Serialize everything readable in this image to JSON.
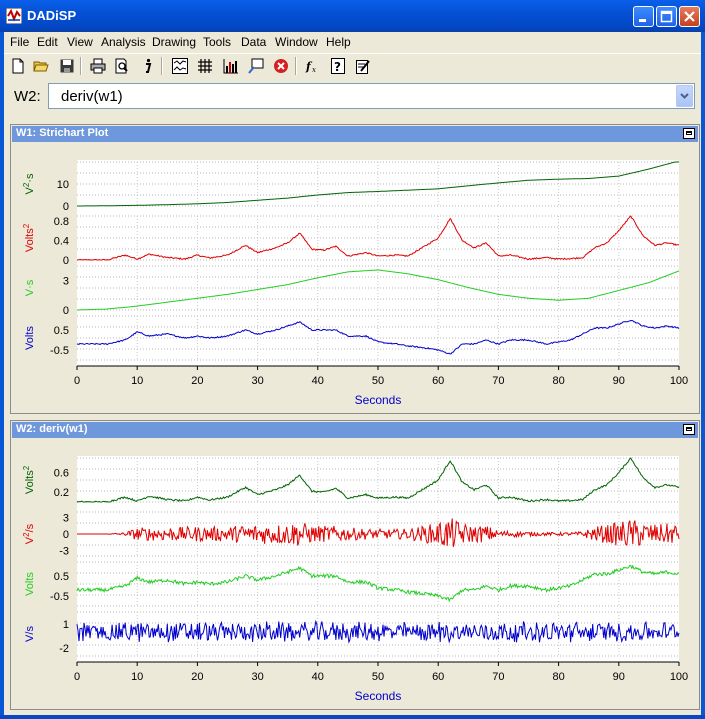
{
  "window": {
    "title": "DADiSP",
    "colors": {
      "title_bar": "#0451d6",
      "pane_title": "#6f97dc",
      "chrome": "#ece9d8"
    }
  },
  "menu": [
    "File",
    "Edit",
    "View",
    "Analysis",
    "Drawing",
    "Tools",
    "Data",
    "Window",
    "Help"
  ],
  "toolbar_icons": [
    "new-file-icon",
    "open-folder-icon",
    "save-icon",
    "print-icon",
    "print-preview-icon",
    "info-icon",
    "strip-plot-icon",
    "grid-icon",
    "bar-chart-icon",
    "annotate-icon",
    "stop-icon",
    "function-icon",
    "help-icon",
    "edit-notes-icon"
  ],
  "command": {
    "label": "W2:",
    "value": "deriv(w1)"
  },
  "panes": [
    {
      "title": "W1: Strichart Plot",
      "xlabel": "Seconds",
      "xticks": [
        "0",
        "10",
        "20",
        "30",
        "40",
        "50",
        "60",
        "70",
        "80",
        "90",
        "100"
      ],
      "strips": [
        {
          "label": "V²·s",
          "label_main": "V",
          "label_sup": "2",
          "label_rest": "·s",
          "color": "#006400",
          "ticks": [
            "10",
            "0"
          ]
        },
        {
          "label": "Volts²",
          "label_main": "Volts",
          "label_sup": "2",
          "label_rest": "",
          "color": "#e00000",
          "ticks": [
            "0.8",
            "0.4",
            "0"
          ]
        },
        {
          "label": "V·s",
          "label_main": "V·s",
          "label_sup": "",
          "label_rest": "",
          "color": "#22cc22",
          "ticks": [
            "3",
            "0"
          ]
        },
        {
          "label": "Volts",
          "label_main": "Volts",
          "label_sup": "",
          "label_rest": "",
          "color": "#0000cc",
          "ticks": [
            "0.5",
            "-0.5"
          ]
        }
      ]
    },
    {
      "title": "W2: deriv(w1)",
      "xlabel": "Seconds",
      "xticks": [
        "0",
        "10",
        "20",
        "30",
        "40",
        "50",
        "60",
        "70",
        "80",
        "90",
        "100"
      ],
      "strips": [
        {
          "label": "Volts²",
          "label_main": "Volts",
          "label_sup": "2",
          "label_rest": "",
          "color": "#006400",
          "ticks": [
            "0.6",
            "0.2"
          ]
        },
        {
          "label": "V²/s",
          "label_main": "V",
          "label_sup": "2",
          "label_rest": "/s",
          "color": "#e00000",
          "ticks": [
            "3",
            "0",
            "-3"
          ]
        },
        {
          "label": "Volts",
          "label_main": "Volts",
          "label_sup": "",
          "label_rest": "",
          "color": "#22cc22",
          "ticks": [
            "0.5",
            "-0.5"
          ]
        },
        {
          "label": "V/s",
          "label_main": "V/s",
          "label_sup": "",
          "label_rest": "",
          "color": "#0000cc",
          "ticks": [
            "1",
            "-2"
          ]
        }
      ]
    }
  ],
  "chart_data": [
    {
      "type": "line",
      "title": "W1: Strichart Plot",
      "xlabel": "Seconds",
      "xlim": [
        0,
        100
      ],
      "grid": true,
      "series": [
        {
          "name": "V²·s",
          "ylim": [
            0,
            20
          ],
          "x": [
            0,
            5,
            10,
            15,
            20,
            25,
            30,
            35,
            40,
            45,
            50,
            55,
            60,
            65,
            70,
            75,
            80,
            85,
            90,
            95,
            100
          ],
          "y": [
            0,
            0.1,
            0.3,
            0.6,
            1,
            1.6,
            2.6,
            3.6,
            5,
            6.1,
            6.6,
            7.2,
            7.8,
            9.2,
            10.5,
            11.7,
            12.2,
            12.5,
            13.6,
            16.8,
            20.5
          ]
        },
        {
          "name": "Volts²",
          "ylim": [
            0,
            0.9
          ],
          "x": [
            0,
            5,
            8,
            10,
            12,
            15,
            18,
            20,
            22,
            25,
            28,
            30,
            33,
            35,
            37,
            39,
            41,
            43,
            45,
            48,
            50,
            53,
            55,
            58,
            60,
            62,
            64,
            66,
            68,
            70,
            72,
            75,
            78,
            80,
            82,
            84,
            86,
            88,
            90,
            92,
            94,
            96,
            98,
            100
          ],
          "y": [
            0,
            0,
            0.1,
            0.02,
            0.12,
            0.05,
            0.02,
            0.1,
            0.04,
            0.1,
            0.3,
            0.15,
            0.25,
            0.35,
            0.55,
            0.22,
            0.2,
            0.28,
            0.08,
            0.15,
            0.08,
            0.1,
            0.08,
            0.3,
            0.45,
            0.85,
            0.4,
            0.25,
            0.35,
            0.08,
            0.1,
            0.02,
            0.05,
            0.02,
            0.03,
            0.05,
            0.25,
            0.35,
            0.6,
            0.9,
            0.5,
            0.3,
            0.35,
            0.3
          ]
        },
        {
          "name": "V·s",
          "ylim": [
            0,
            4.5
          ],
          "x": [
            0,
            5,
            10,
            15,
            20,
            25,
            30,
            35,
            40,
            45,
            50,
            55,
            60,
            65,
            70,
            75,
            80,
            85,
            90,
            95,
            100
          ],
          "y": [
            0,
            0.1,
            0.4,
            0.8,
            1.2,
            1.6,
            2.1,
            2.6,
            3.3,
            3.9,
            4.1,
            3.7,
            3.1,
            2.3,
            1.6,
            1.2,
            1.0,
            1.2,
            2.0,
            2.8,
            4.0
          ]
        },
        {
          "name": "Volts",
          "ylim": [
            -1,
            1.2
          ],
          "x": [
            0,
            5,
            8,
            10,
            12,
            15,
            18,
            20,
            22,
            25,
            28,
            30,
            33,
            35,
            37,
            39,
            41,
            43,
            45,
            48,
            50,
            53,
            55,
            58,
            60,
            62,
            64,
            66,
            68,
            70,
            72,
            75,
            78,
            80,
            82,
            84,
            86,
            88,
            90,
            92,
            94,
            96,
            98,
            100
          ],
          "y": [
            -0.2,
            -0.2,
            0,
            0.4,
            0.2,
            0.3,
            0.1,
            0.2,
            0.1,
            0.2,
            0.5,
            0.3,
            0.5,
            0.7,
            0.9,
            0.5,
            0.5,
            0.5,
            0.2,
            0.2,
            -0.1,
            -0.2,
            -0.3,
            -0.4,
            -0.5,
            -0.7,
            -0.2,
            -0.2,
            0,
            -0.2,
            0,
            0,
            -0.2,
            -0.1,
            0,
            0.3,
            0.6,
            0.6,
            0.8,
            1.0,
            0.7,
            0.6,
            0.7,
            0.6
          ]
        }
      ]
    },
    {
      "type": "line",
      "title": "W2: deriv(w1)",
      "xlabel": "Seconds",
      "xlim": [
        0,
        100
      ],
      "grid": true,
      "series": [
        {
          "name": "Volts²",
          "ylim": [
            0,
            0.9
          ],
          "x": [
            0,
            5,
            8,
            10,
            12,
            15,
            18,
            20,
            22,
            25,
            28,
            30,
            33,
            35,
            37,
            39,
            41,
            43,
            45,
            48,
            50,
            53,
            55,
            58,
            60,
            62,
            64,
            66,
            68,
            70,
            72,
            75,
            78,
            80,
            82,
            84,
            86,
            88,
            90,
            92,
            94,
            96,
            98,
            100
          ],
          "y": [
            0,
            0,
            0.1,
            0.02,
            0.12,
            0.05,
            0.02,
            0.1,
            0.04,
            0.1,
            0.3,
            0.15,
            0.25,
            0.35,
            0.55,
            0.22,
            0.2,
            0.28,
            0.08,
            0.15,
            0.08,
            0.1,
            0.08,
            0.3,
            0.45,
            0.85,
            0.4,
            0.25,
            0.35,
            0.08,
            0.1,
            0.02,
            0.05,
            0.02,
            0.03,
            0.05,
            0.25,
            0.35,
            0.6,
            0.9,
            0.5,
            0.3,
            0.35,
            0.3
          ],
          "noise": 0.02
        },
        {
          "name": "V²/s",
          "ylim": [
            -4,
            4
          ],
          "x": [
            0,
            5,
            8,
            10,
            12,
            15,
            18,
            20,
            22,
            25,
            28,
            30,
            33,
            35,
            37,
            39,
            41,
            43,
            45,
            48,
            50,
            53,
            55,
            58,
            60,
            62,
            64,
            66,
            68,
            70,
            72,
            75,
            78,
            80,
            82,
            84,
            86,
            88,
            90,
            92,
            94,
            96,
            98,
            100
          ],
          "y": [
            0,
            0,
            0,
            0,
            0,
            0,
            0,
            0,
            0,
            0,
            0,
            0,
            0,
            0,
            0,
            0,
            0,
            0,
            0,
            0,
            0,
            0,
            0,
            0,
            0,
            0,
            0,
            0,
            0,
            0,
            0,
            0,
            0,
            0,
            0,
            0,
            0,
            0,
            0,
            0,
            0,
            0,
            0,
            0
          ],
          "envelope": [
            0,
            0,
            0.3,
            1.2,
            1.2,
            1.3,
            1.3,
            1.4,
            1.3,
            1.4,
            1.7,
            1.8,
            1.9,
            2.0,
            2.3,
            1.6,
            1.5,
            1.5,
            1.2,
            1.0,
            0.9,
            0.9,
            1.0,
            1.6,
            2.2,
            3.0,
            2.0,
            1.5,
            1.6,
            0.6,
            0.6,
            0.4,
            0.3,
            0.3,
            0.3,
            0.5,
            1.4,
            1.7,
            2.2,
            2.8,
            2.2,
            1.8,
            1.9,
            1.8
          ]
        },
        {
          "name": "Volts",
          "ylim": [
            -1,
            1.2
          ],
          "x": [
            0,
            5,
            8,
            10,
            12,
            15,
            18,
            20,
            22,
            25,
            28,
            30,
            33,
            35,
            37,
            39,
            41,
            43,
            45,
            48,
            50,
            53,
            55,
            58,
            60,
            62,
            64,
            66,
            68,
            70,
            72,
            75,
            78,
            80,
            82,
            84,
            86,
            88,
            90,
            92,
            94,
            96,
            98,
            100
          ],
          "y": [
            -0.2,
            -0.2,
            0,
            0.4,
            0.2,
            0.3,
            0.1,
            0.2,
            0.1,
            0.2,
            0.5,
            0.3,
            0.5,
            0.7,
            0.9,
            0.5,
            0.5,
            0.5,
            0.2,
            0.2,
            -0.1,
            -0.2,
            -0.3,
            -0.4,
            -0.5,
            -0.7,
            -0.2,
            -0.2,
            0,
            -0.2,
            0,
            0,
            -0.2,
            -0.1,
            0,
            0.3,
            0.6,
            0.6,
            0.8,
            1.0,
            0.7,
            0.6,
            0.7,
            0.6
          ],
          "noise": 0.04
        },
        {
          "name": "V/s",
          "ylim": [
            -3,
            2.5
          ],
          "x": [
            0,
            100
          ],
          "y": [
            0,
            0
          ],
          "envelope_const": 1.1
        }
      ]
    }
  ]
}
